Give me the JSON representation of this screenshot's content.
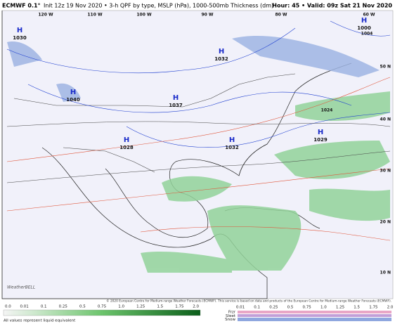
{
  "header": {
    "model": "ECMWF 0.1°",
    "info": "Init 12z 19 Nov 2020 • 3-h QPF by type, MSLP (hPa), 1000-500mb Thickness (dm)",
    "valid": "Hour: 45 • Valid: 09z Sat 21 Nov 2020"
  },
  "highs": [
    {
      "symbol": "H",
      "pressure": "1030"
    },
    {
      "symbol": "H",
      "pressure": "1040"
    },
    {
      "symbol": "H",
      "pressure": "1037"
    },
    {
      "symbol": "H",
      "pressure": "1032"
    },
    {
      "symbol": "H",
      "pressure": "1028"
    },
    {
      "symbol": "H",
      "pressure": "1032"
    },
    {
      "symbol": "H",
      "pressure": "1029"
    },
    {
      "symbol": "H",
      "pressure": "1000"
    }
  ],
  "longitudes": [
    "120 W",
    "110 W",
    "100 W",
    "90 W",
    "80 W",
    "60 W"
  ],
  "latitudes": [
    "50 N",
    "40 N",
    "30 N",
    "20 N",
    "10 N"
  ],
  "isobar_labels": [
    "1024",
    "1004"
  ],
  "logo": "WeatherBELL",
  "copyright": "© 2020 European Centre for Medium-range Weather Forecasts (ECMWF). This service is based on data and products of the European Centre for Medium-range Weather Forecasts (ECMWF).",
  "legend": {
    "qpf_ticks": [
      "0.0",
      "0.01",
      "0.1",
      "0.25",
      "0.5",
      "0.75",
      "1.0",
      "1.25",
      "1.5",
      "1.75",
      "2.0"
    ],
    "note": "All values represent liquid equivalent",
    "ptype_ticks": [
      "0.01",
      "0.1",
      "0.25",
      "0.5",
      "0.75",
      "1.0",
      "1.25",
      "1.5",
      "1.75",
      "2.0"
    ],
    "ptypes": [
      "Frzr",
      "Sleet",
      "Snow"
    ]
  }
}
